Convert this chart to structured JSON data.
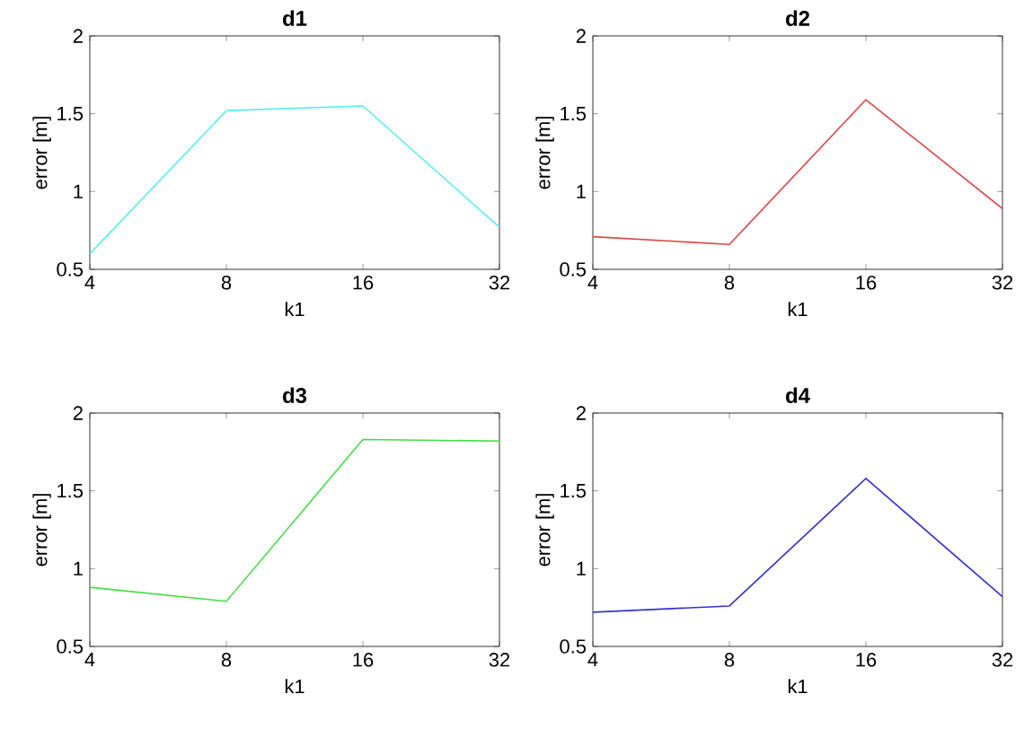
{
  "chart_data": [
    {
      "type": "line",
      "title": "d1",
      "xlabel": "k1",
      "ylabel": "error [m]",
      "x": [
        4,
        8,
        16,
        32
      ],
      "values": [
        0.6,
        1.52,
        1.55,
        0.77
      ],
      "color": "#55eeee",
      "log": "x",
      "xlim": [
        4,
        32
      ],
      "xticks": [
        4,
        8,
        16,
        32
      ],
      "ylim": [
        0.5,
        2
      ],
      "yticks": [
        0.5,
        1,
        1.5,
        2
      ]
    },
    {
      "type": "line",
      "title": "d2",
      "xlabel": "k1",
      "ylabel": "error [m]",
      "x": [
        4,
        8,
        16,
        32
      ],
      "values": [
        0.71,
        0.66,
        1.59,
        0.89
      ],
      "color": "#dd4444",
      "log": "x",
      "xlim": [
        4,
        32
      ],
      "xticks": [
        4,
        8,
        16,
        32
      ],
      "ylim": [
        0.5,
        2
      ],
      "yticks": [
        0.5,
        1,
        1.5,
        2
      ]
    },
    {
      "type": "line",
      "title": "d3",
      "xlabel": "k1",
      "ylabel": "error [m]",
      "x": [
        4,
        8,
        16,
        32
      ],
      "values": [
        0.88,
        0.79,
        1.83,
        1.82
      ],
      "color": "#44dd44",
      "log": "x",
      "xlim": [
        4,
        32
      ],
      "xticks": [
        4,
        8,
        16,
        32
      ],
      "ylim": [
        0.5,
        2
      ],
      "yticks": [
        0.5,
        1,
        1.5,
        2
      ]
    },
    {
      "type": "line",
      "title": "d4",
      "xlabel": "k1",
      "ylabel": "error [m]",
      "x": [
        4,
        8,
        16,
        32
      ],
      "values": [
        0.72,
        0.76,
        1.58,
        0.82
      ],
      "color": "#3333cc",
      "log": "x",
      "xlim": [
        4,
        32
      ],
      "xticks": [
        4,
        8,
        16,
        32
      ],
      "ylim": [
        0.5,
        2
      ],
      "yticks": [
        0.5,
        1,
        1.5,
        2
      ]
    }
  ]
}
